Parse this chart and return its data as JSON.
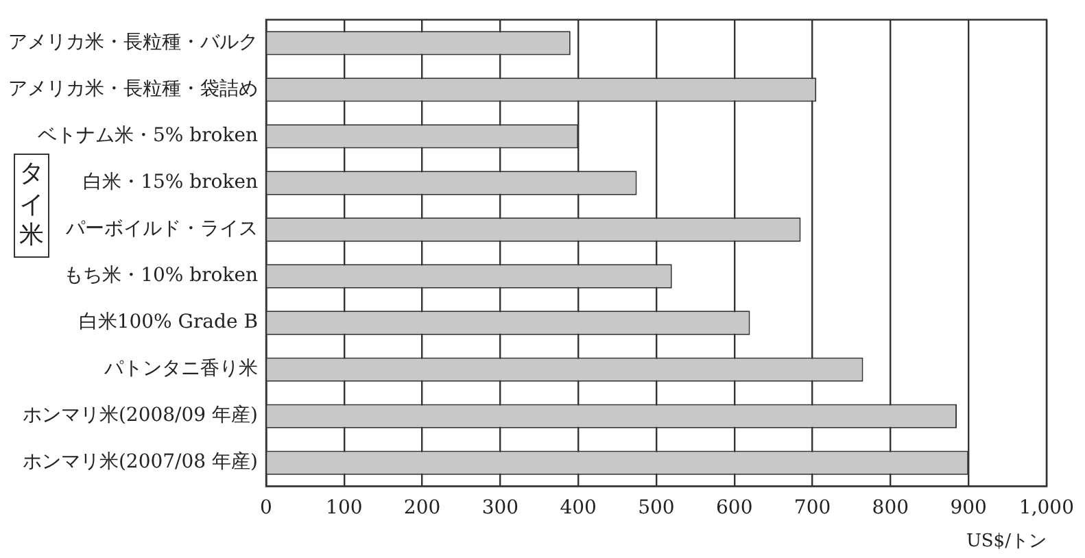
{
  "chart_data": {
    "type": "bar",
    "orientation": "horizontal",
    "categories": [
      "アメリカ米・長粒種・バルク",
      "アメリカ米・長粒種・袋詰め",
      "ベトナム米・5% broken",
      "白米・15% broken",
      "パーボイルド・ライス",
      "もち米・10% broken",
      "白米100% Grade B",
      "パトンタニ香り米",
      "ホンマリ米(2008/09 年産)",
      "ホンマリ米(2007/08 年産)"
    ],
    "values": [
      390,
      705,
      400,
      475,
      685,
      520,
      620,
      765,
      885,
      900
    ],
    "color": "#c8c8c8",
    "xlim": [
      0,
      1000
    ],
    "xticks": [
      0,
      100,
      200,
      300,
      400,
      500,
      600,
      700,
      800,
      900,
      {
        "value": 1000,
        "label": "1,000"
      }
    ],
    "xlabel": "US$/トン",
    "annotations": [
      "タイ米"
    ],
    "grid": "x",
    "legend": false
  }
}
